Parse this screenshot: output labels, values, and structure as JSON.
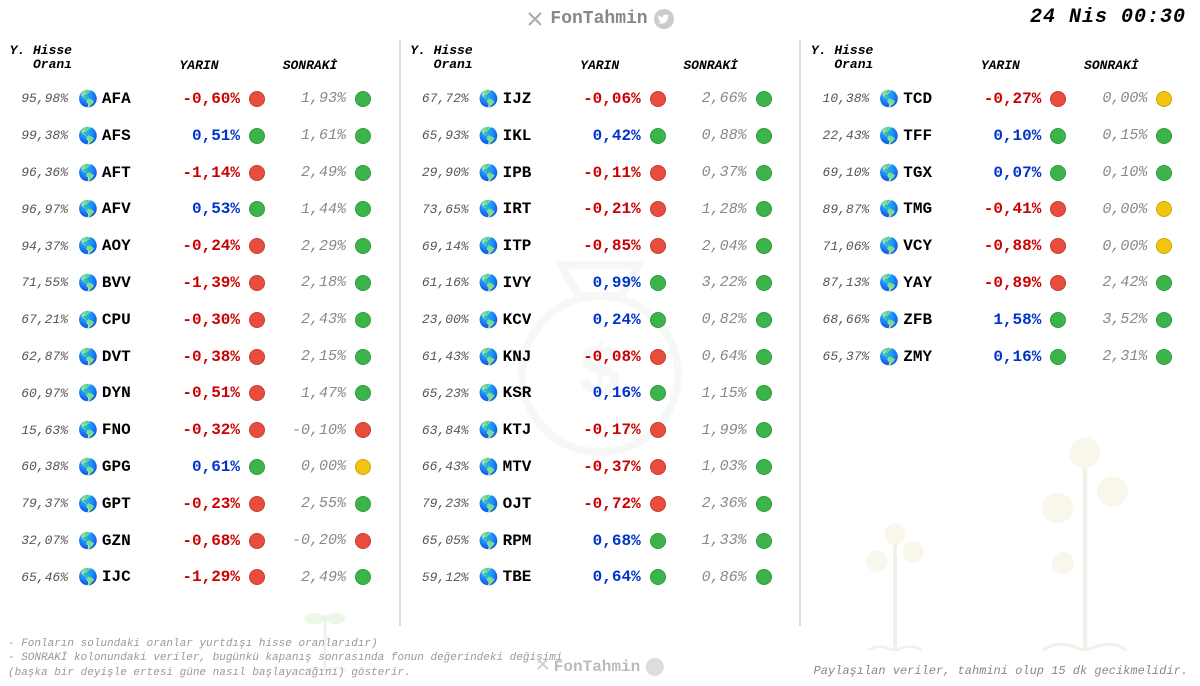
{
  "brand": "FonTahmin",
  "timestamp": "24 Nis  00:30",
  "headers": {
    "ratio_line1": "Y. Hisse",
    "ratio_line2": "Oranı",
    "yarin": "YARIN",
    "sonraki": "SONRAKİ"
  },
  "colors": {
    "pos_text": "#0033cc",
    "neg_text": "#cc0000",
    "dot_green": "#3bb54a",
    "dot_red": "#e84c3d",
    "dot_yellow": "#f1c40f",
    "muted": "#888888"
  },
  "footer": {
    "note1": "- Fonların solundaki oranlar yurtdışı hisse oranlarıdır)",
    "note2": "- SONRAKİ kolonundaki veriler, bugünkü kapanış sonrasında fonun değerindeki değişimi (başka bir deyişle ertesi güne nasıl başlayacağını) gösterir.",
    "right": "Paylaşılan veriler, tahmini olup 15 dk gecikmelidir."
  },
  "columns": [
    [
      {
        "ratio": "95,98%",
        "sym": "AFA",
        "yarin": "-0,60%",
        "d1": "red",
        "sonraki": "1,93%",
        "d2": "green"
      },
      {
        "ratio": "99,38%",
        "sym": "AFS",
        "yarin": "0,51%",
        "d1": "green",
        "sonraki": "1,61%",
        "d2": "green"
      },
      {
        "ratio": "96,36%",
        "sym": "AFT",
        "yarin": "-1,14%",
        "d1": "red",
        "sonraki": "2,49%",
        "d2": "green"
      },
      {
        "ratio": "96,97%",
        "sym": "AFV",
        "yarin": "0,53%",
        "d1": "green",
        "sonraki": "1,44%",
        "d2": "green"
      },
      {
        "ratio": "94,37%",
        "sym": "AOY",
        "yarin": "-0,24%",
        "d1": "red",
        "sonraki": "2,29%",
        "d2": "green"
      },
      {
        "ratio": "71,55%",
        "sym": "BVV",
        "yarin": "-1,39%",
        "d1": "red",
        "sonraki": "2,18%",
        "d2": "green"
      },
      {
        "ratio": "67,21%",
        "sym": "CPU",
        "yarin": "-0,30%",
        "d1": "red",
        "sonraki": "2,43%",
        "d2": "green"
      },
      {
        "ratio": "62,87%",
        "sym": "DVT",
        "yarin": "-0,38%",
        "d1": "red",
        "sonraki": "2,15%",
        "d2": "green"
      },
      {
        "ratio": "60,97%",
        "sym": "DYN",
        "yarin": "-0,51%",
        "d1": "red",
        "sonraki": "1,47%",
        "d2": "green"
      },
      {
        "ratio": "15,63%",
        "sym": "FNO",
        "yarin": "-0,32%",
        "d1": "red",
        "sonraki": "-0,10%",
        "d2": "red"
      },
      {
        "ratio": "60,38%",
        "sym": "GPG",
        "yarin": "0,61%",
        "d1": "green",
        "sonraki": "0,00%",
        "d2": "yellow"
      },
      {
        "ratio": "79,37%",
        "sym": "GPT",
        "yarin": "-0,23%",
        "d1": "red",
        "sonraki": "2,55%",
        "d2": "green"
      },
      {
        "ratio": "32,07%",
        "sym": "GZN",
        "yarin": "-0,68%",
        "d1": "red",
        "sonraki": "-0,20%",
        "d2": "red"
      },
      {
        "ratio": "65,46%",
        "sym": "IJC",
        "yarin": "-1,29%",
        "d1": "red",
        "sonraki": "2,49%",
        "d2": "green"
      }
    ],
    [
      {
        "ratio": "67,72%",
        "sym": "IJZ",
        "yarin": "-0,06%",
        "d1": "red",
        "sonraki": "2,66%",
        "d2": "green"
      },
      {
        "ratio": "65,93%",
        "sym": "IKL",
        "yarin": "0,42%",
        "d1": "green",
        "sonraki": "0,88%",
        "d2": "green"
      },
      {
        "ratio": "29,90%",
        "sym": "IPB",
        "yarin": "-0,11%",
        "d1": "red",
        "sonraki": "0,37%",
        "d2": "green"
      },
      {
        "ratio": "73,65%",
        "sym": "IRT",
        "yarin": "-0,21%",
        "d1": "red",
        "sonraki": "1,28%",
        "d2": "green"
      },
      {
        "ratio": "69,14%",
        "sym": "ITP",
        "yarin": "-0,85%",
        "d1": "red",
        "sonraki": "2,04%",
        "d2": "green"
      },
      {
        "ratio": "61,16%",
        "sym": "IVY",
        "yarin": "0,99%",
        "d1": "green",
        "sonraki": "3,22%",
        "d2": "green"
      },
      {
        "ratio": "23,00%",
        "sym": "KCV",
        "yarin": "0,24%",
        "d1": "green",
        "sonraki": "0,82%",
        "d2": "green"
      },
      {
        "ratio": "61,43%",
        "sym": "KNJ",
        "yarin": "-0,08%",
        "d1": "red",
        "sonraki": "0,64%",
        "d2": "green"
      },
      {
        "ratio": "65,23%",
        "sym": "KSR",
        "yarin": "0,16%",
        "d1": "green",
        "sonraki": "1,15%",
        "d2": "green"
      },
      {
        "ratio": "63,84%",
        "sym": "KTJ",
        "yarin": "-0,17%",
        "d1": "red",
        "sonraki": "1,99%",
        "d2": "green"
      },
      {
        "ratio": "66,43%",
        "sym": "MTV",
        "yarin": "-0,37%",
        "d1": "red",
        "sonraki": "1,03%",
        "d2": "green"
      },
      {
        "ratio": "79,23%",
        "sym": "OJT",
        "yarin": "-0,72%",
        "d1": "red",
        "sonraki": "2,36%",
        "d2": "green"
      },
      {
        "ratio": "65,05%",
        "sym": "RPM",
        "yarin": "0,68%",
        "d1": "green",
        "sonraki": "1,33%",
        "d2": "green"
      },
      {
        "ratio": "59,12%",
        "sym": "TBE",
        "yarin": "0,64%",
        "d1": "green",
        "sonraki": "0,86%",
        "d2": "green"
      }
    ],
    [
      {
        "ratio": "10,38%",
        "sym": "TCD",
        "yarin": "-0,27%",
        "d1": "red",
        "sonraki": "0,00%",
        "d2": "yellow"
      },
      {
        "ratio": "22,43%",
        "sym": "TFF",
        "yarin": "0,10%",
        "d1": "green",
        "sonraki": "0,15%",
        "d2": "green"
      },
      {
        "ratio": "69,10%",
        "sym": "TGX",
        "yarin": "0,07%",
        "d1": "green",
        "sonraki": "0,10%",
        "d2": "green"
      },
      {
        "ratio": "89,87%",
        "sym": "TMG",
        "yarin": "-0,41%",
        "d1": "red",
        "sonraki": "0,00%",
        "d2": "yellow"
      },
      {
        "ratio": "71,06%",
        "sym": "VCY",
        "yarin": "-0,88%",
        "d1": "red",
        "sonraki": "0,00%",
        "d2": "yellow"
      },
      {
        "ratio": "87,13%",
        "sym": "YAY",
        "yarin": "-0,89%",
        "d1": "red",
        "sonraki": "2,42%",
        "d2": "green"
      },
      {
        "ratio": "68,66%",
        "sym": "ZFB",
        "yarin": "1,58%",
        "d1": "green",
        "sonraki": "3,52%",
        "d2": "green"
      },
      {
        "ratio": "65,37%",
        "sym": "ZMY",
        "yarin": "0,16%",
        "d1": "green",
        "sonraki": "2,31%",
        "d2": "green"
      }
    ]
  ]
}
